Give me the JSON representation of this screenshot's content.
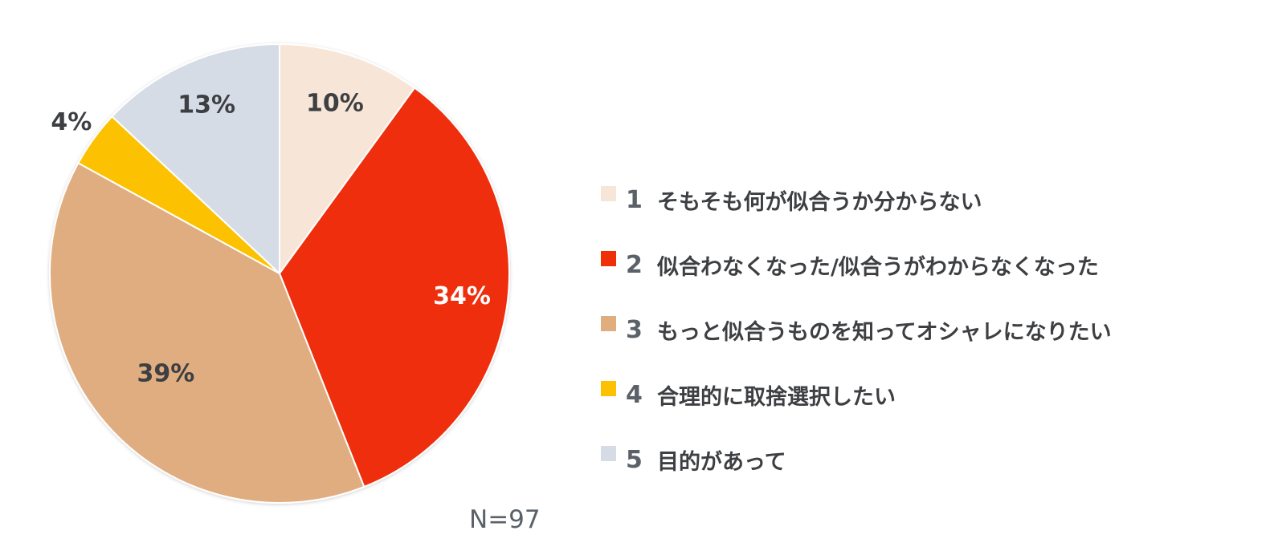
{
  "chart_data": {
    "type": "pie",
    "start_angle_deg": 0,
    "direction": "clockwise",
    "slices": [
      {
        "index": "1",
        "label": "そもそも何が似合うか分からない",
        "value": 10,
        "value_label": "10%",
        "color": "#f7e6d8"
      },
      {
        "index": "2",
        "label": "似合わなくなった/似合うがわからなくなった",
        "value": 34,
        "value_label": "34%",
        "color": "#ee2f08"
      },
      {
        "index": "3",
        "label": "もっと似合うものを知ってオシャレになりたい",
        "value": 39,
        "value_label": "39%",
        "color": "#e0ad80"
      },
      {
        "index": "4",
        "label": "合理的に取捨選択したい",
        "value": 4,
        "value_label": "4%",
        "color": "#fcc100"
      },
      {
        "index": "5",
        "label": "目的があって",
        "value": 13,
        "value_label": "13%",
        "color": "#d6dce6"
      }
    ],
    "label_colors": [
      "#3d3f42",
      "#ffffff",
      "#3d3f42",
      "#3d3f42",
      "#3d3f42"
    ],
    "legend_position": "right"
  },
  "sample_size": "N=97"
}
